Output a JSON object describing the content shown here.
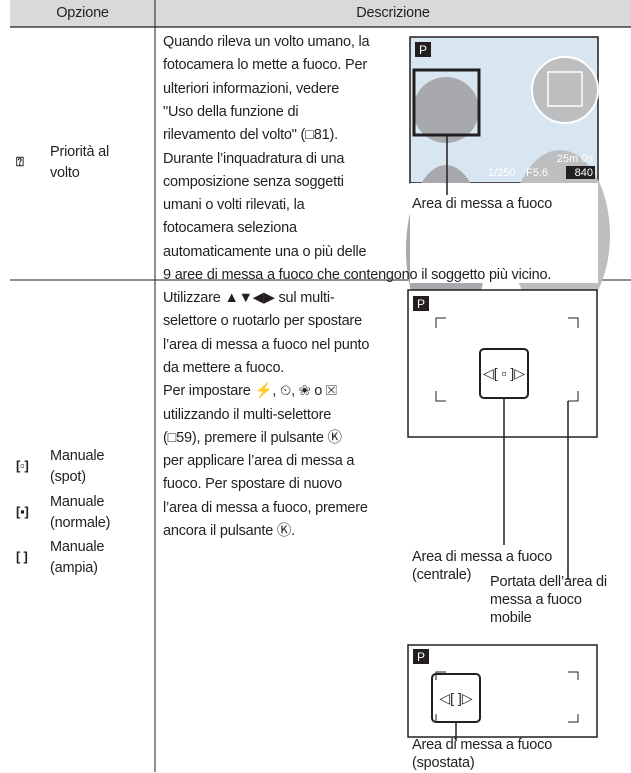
{
  "header": {
    "option": "Opzione",
    "description": "Descrizione"
  },
  "rows": [
    {
      "options": [
        {
          "icon": "⍰",
          "label": [
            "Priorità al",
            "volto"
          ]
        }
      ],
      "description": [
        "Quando rileva un volto umano, la",
        "fotocamera lo mette a fuoco. Per",
        "ulteriori informazioni, vedere",
        "\"Uso della funzione di",
        "rilevamento del volto\" (□81).",
        "Durante l’inquadratura di una",
        "composizione senza soggetti",
        "umani o volti rilevati, la",
        "fotocamera seleziona",
        "automaticamente una o più delle",
        "9 aree di messa a fuoco che contengono il soggetto più vicino."
      ],
      "screen": {
        "mode": "P",
        "shutter": "1/250",
        "aperture": "F5.6",
        "time": "25m 0s",
        "count": "840"
      },
      "callouts": [
        [
          "Area di messa a fuoco"
        ]
      ]
    },
    {
      "options": [
        {
          "icon": "[▫]",
          "label": [
            "Manuale",
            "(spot)"
          ]
        },
        {
          "icon": "[▪]",
          "label": [
            "Manuale",
            "(normale)"
          ]
        },
        {
          "icon": "[ ]",
          "label": [
            "Manuale",
            "(ampia)"
          ]
        }
      ],
      "description": [
        "Utilizzare ▲▼◀▶ sul multi-",
        "selettore o ruotarlo per spostare",
        "l’area di messa a fuoco nel punto",
        "da mettere a fuoco.",
        "Per impostare ⚡, ⏲, ❀ o ☒",
        "utilizzando il multi-selettore",
        "(□59), premere il pulsante Ⓚ",
        "per applicare l’area di messa a",
        "fuoco. Per spostare di nuovo",
        "l’area di messa a fuoco, premere",
        "ancora il pulsante Ⓚ."
      ],
      "screens": [
        {
          "mode": "P"
        },
        {
          "mode": "P"
        }
      ],
      "callouts": [
        [
          "Area di messa a fuoco",
          "(centrale)"
        ],
        [
          "Portata dell’area di",
          "messa a fuoco",
          "mobile"
        ],
        [
          "Area di messa a fuoco",
          "(spostata)"
        ]
      ]
    }
  ]
}
